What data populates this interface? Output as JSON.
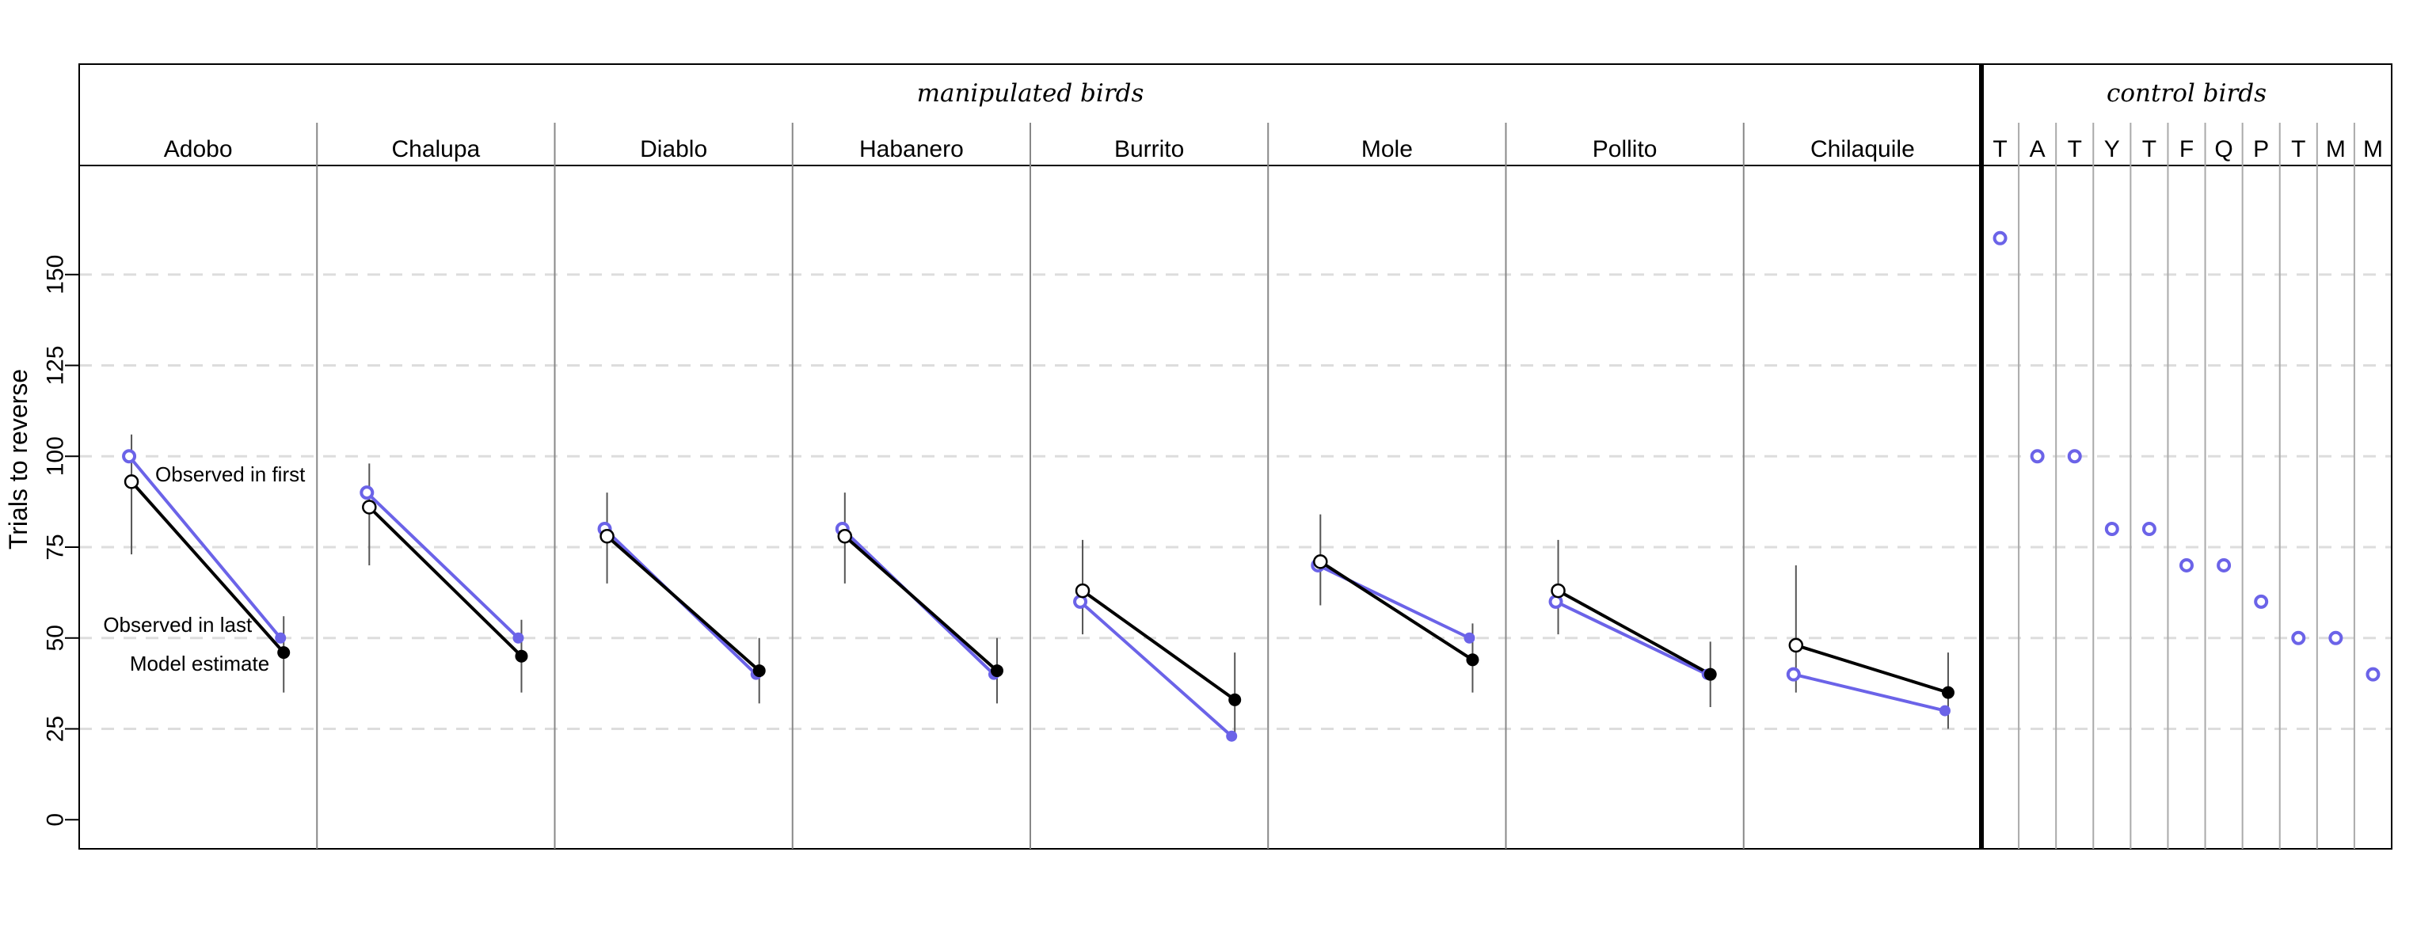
{
  "chart_data": {
    "type": "line",
    "ylabel": "Trials to reverse",
    "yticks": [
      0,
      25,
      50,
      75,
      100,
      125,
      150
    ],
    "ylim": [
      -8,
      180
    ],
    "grid": "horizontal-dashed",
    "groups": {
      "manipulated_label": "manipulated birds",
      "control_label": "control birds"
    },
    "colors": {
      "observed": "#6b63e8",
      "model": "#000000",
      "grid": "#dddddd",
      "errorbar": "#555555"
    },
    "annotations": {
      "observed_first": "Observed in first",
      "observed_last": "Observed in last",
      "model_estimate": "Model estimate"
    },
    "manipulated": [
      {
        "name": "Adobo",
        "obs_first": 100,
        "obs_last": 50,
        "model_first": 93,
        "model_last": 46,
        "ci_first": [
          73,
          106
        ],
        "ci_last": [
          35,
          56
        ]
      },
      {
        "name": "Chalupa",
        "obs_first": 90,
        "obs_last": 50,
        "model_first": 86,
        "model_last": 45,
        "ci_first": [
          70,
          98
        ],
        "ci_last": [
          35,
          55
        ]
      },
      {
        "name": "Diablo",
        "obs_first": 80,
        "obs_last": 40,
        "model_first": 78,
        "model_last": 41,
        "ci_first": [
          65,
          90
        ],
        "ci_last": [
          32,
          50
        ]
      },
      {
        "name": "Habanero",
        "obs_first": 80,
        "obs_last": 40,
        "model_first": 78,
        "model_last": 41,
        "ci_first": [
          65,
          90
        ],
        "ci_last": [
          32,
          50
        ]
      },
      {
        "name": "Burrito",
        "obs_first": 60,
        "obs_last": 23,
        "model_first": 63,
        "model_last": 33,
        "ci_first": [
          51,
          77
        ],
        "ci_last": [
          22,
          46
        ]
      },
      {
        "name": "Mole",
        "obs_first": 70,
        "obs_last": 50,
        "model_first": 71,
        "model_last": 44,
        "ci_first": [
          59,
          84
        ],
        "ci_last": [
          35,
          54
        ]
      },
      {
        "name": "Pollito",
        "obs_first": 60,
        "obs_last": 40,
        "model_first": 63,
        "model_last": 40,
        "ci_first": [
          51,
          77
        ],
        "ci_last": [
          31,
          49
        ]
      },
      {
        "name": "Chilaquile",
        "obs_first": 40,
        "obs_last": 30,
        "model_first": 48,
        "model_last": 35,
        "ci_first": [
          35,
          70
        ],
        "ci_last": [
          25,
          46
        ]
      }
    ],
    "control": [
      {
        "name": "T",
        "value": 160
      },
      {
        "name": "A",
        "value": 100
      },
      {
        "name": "T",
        "value": 100
      },
      {
        "name": "Y",
        "value": 80
      },
      {
        "name": "T",
        "value": 80
      },
      {
        "name": "F",
        "value": 70
      },
      {
        "name": "Q",
        "value": 70
      },
      {
        "name": "P",
        "value": 60
      },
      {
        "name": "T",
        "value": 50
      },
      {
        "name": "M",
        "value": 50
      },
      {
        "name": "M",
        "value": 40
      }
    ]
  }
}
